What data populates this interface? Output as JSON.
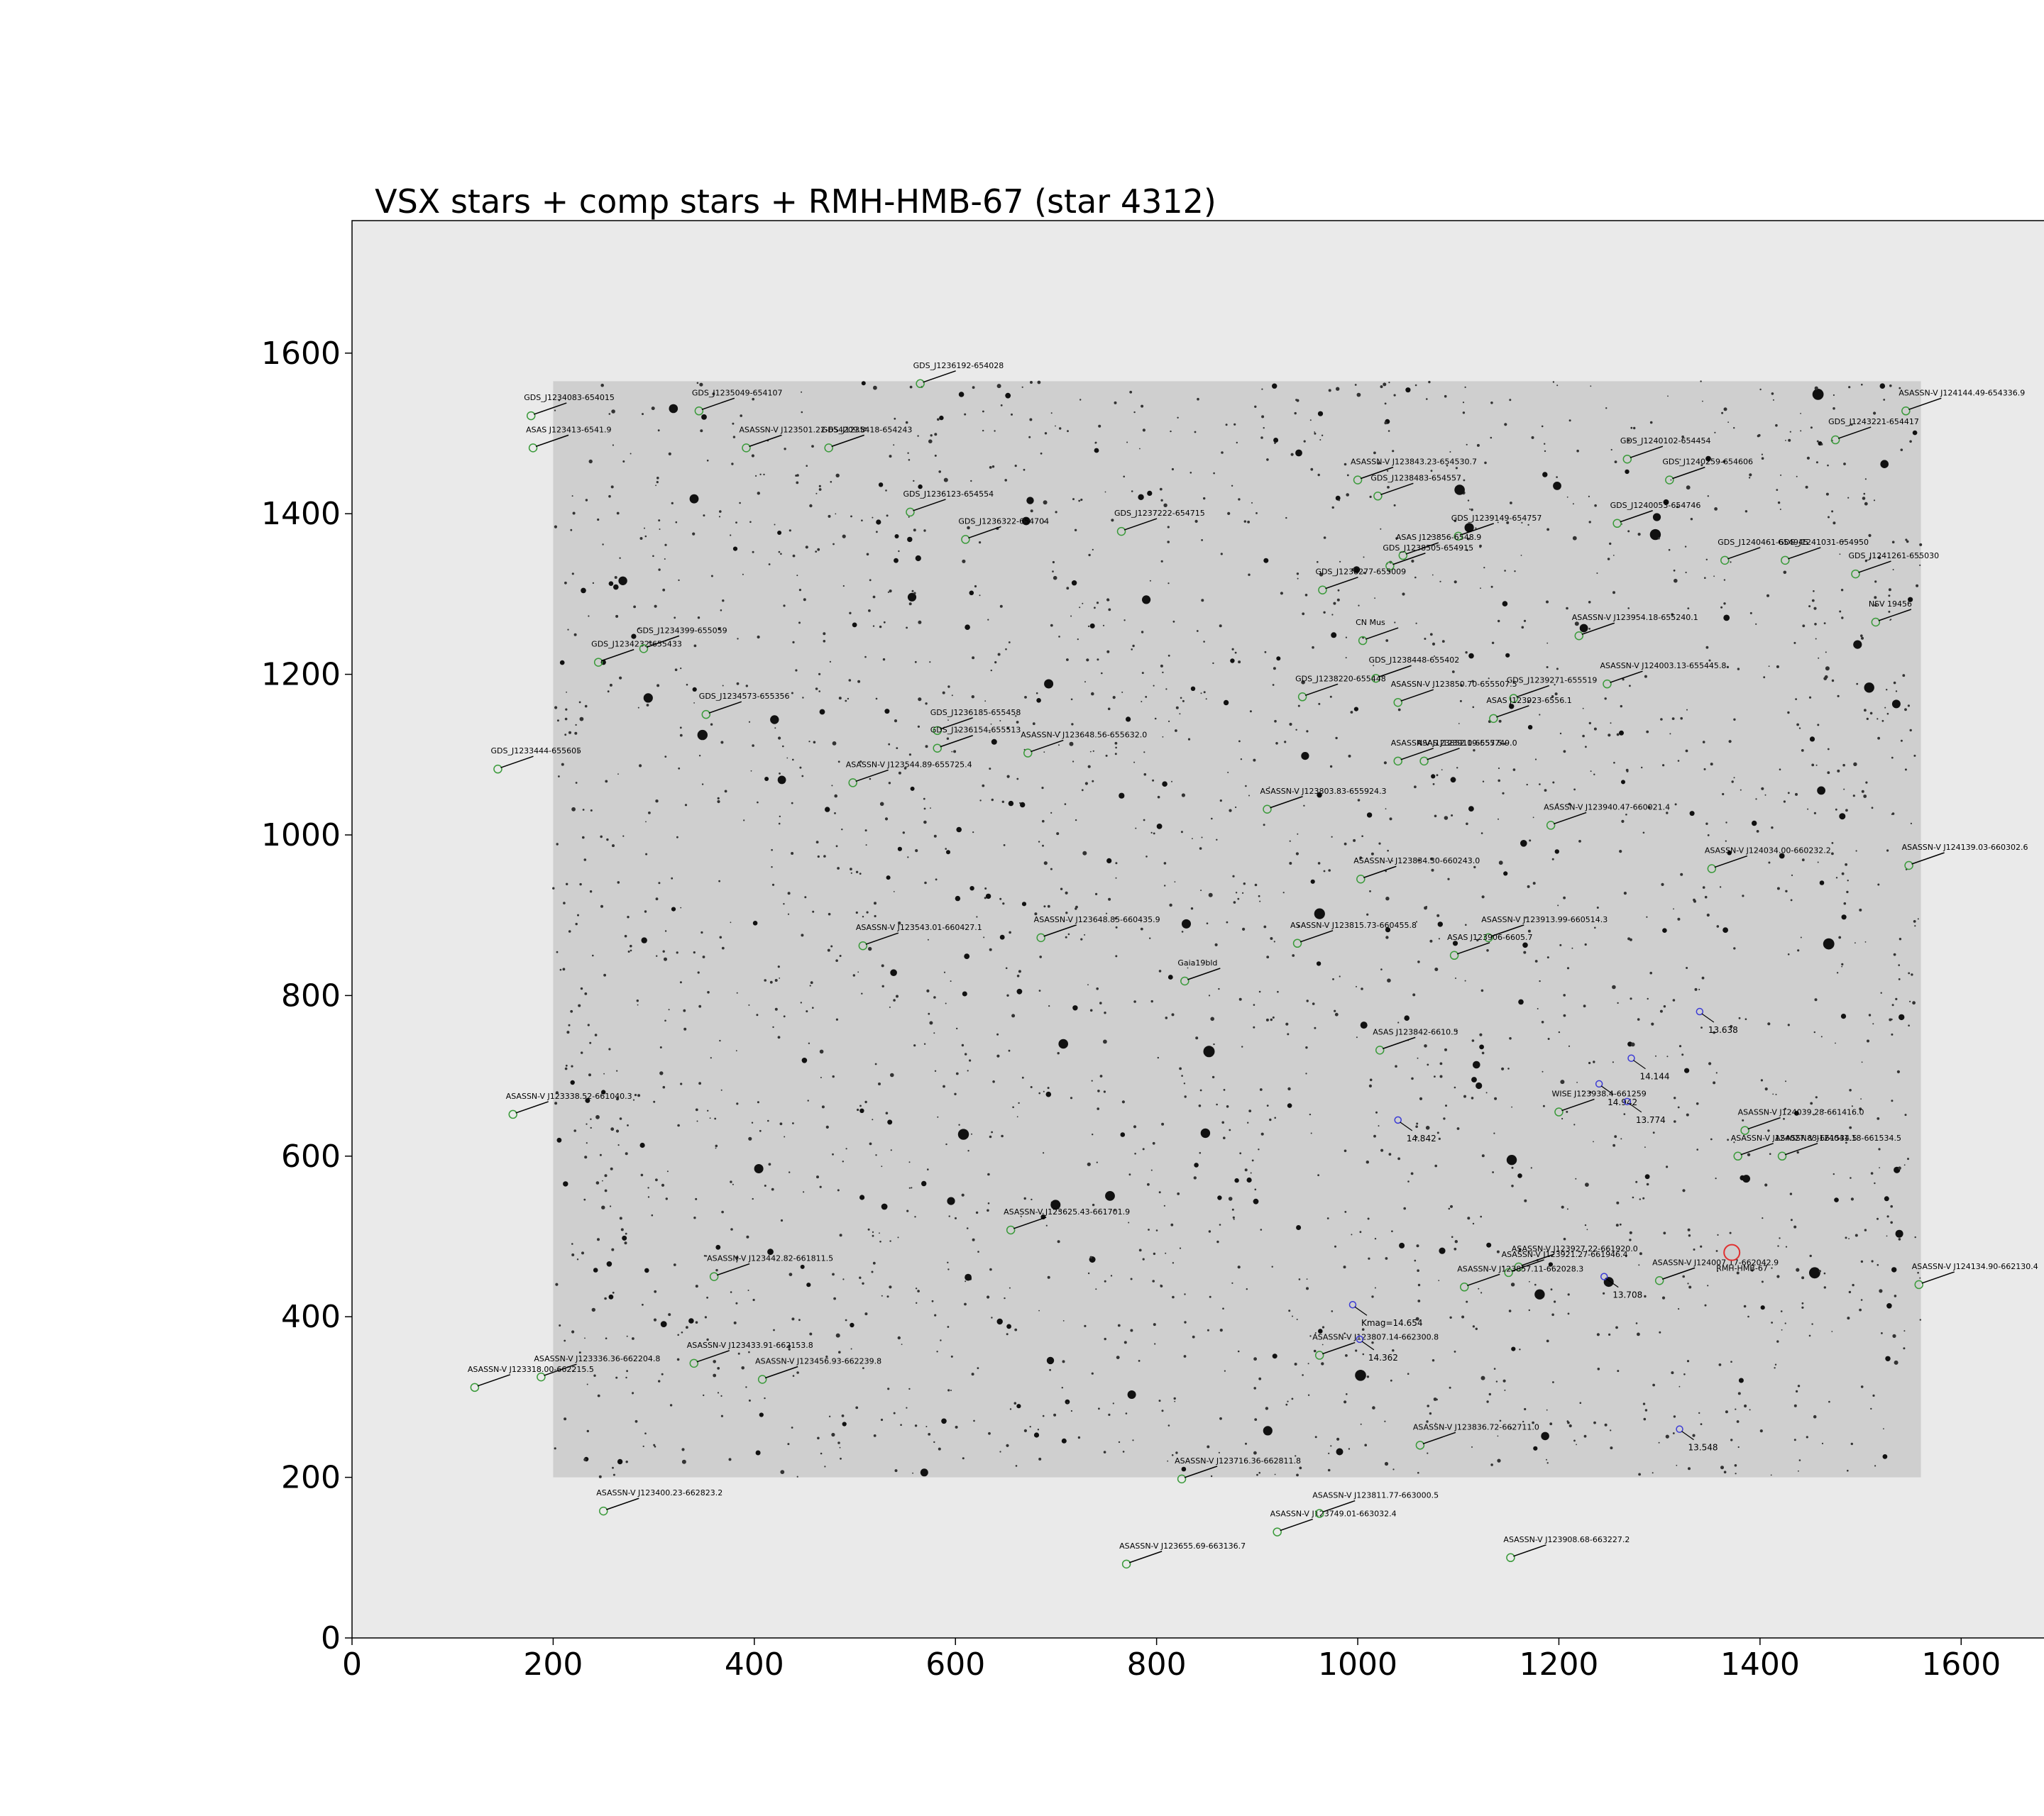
{
  "chart_data": {
    "type": "scatter",
    "title": "VSX stars + comp stars + RMH-HMB-67 (star 4312)",
    "xlabel": "",
    "ylabel": "",
    "xlim": [
      0,
      1760
    ],
    "ylim": [
      0,
      1765
    ],
    "xticks": [
      0,
      200,
      400,
      600,
      800,
      1000,
      1200,
      1400,
      1600
    ],
    "yticks": [
      0,
      200,
      400,
      600,
      800,
      1000,
      1200,
      1400,
      1600
    ],
    "grid": false,
    "image_extent": {
      "x": [
        200,
        1560
      ],
      "y": [
        200,
        1565
      ]
    },
    "colors": {
      "axes_background": "#eaeaea",
      "image_background": "#cfcfcf",
      "vsx_marker": "#3a9a3a",
      "comp_marker": "#3b3bd6",
      "target_marker": "#e03030",
      "leader_line": "#000000"
    },
    "vsx_stars": [
      {
        "x": 565,
        "y": 1562,
        "label": "GDS_J1236192-654028"
      },
      {
        "x": 178,
        "y": 1522,
        "label": "GDS_J1234083-654015"
      },
      {
        "x": 345,
        "y": 1528,
        "label": "GDS_J1235049-654107"
      },
      {
        "x": 1545,
        "y": 1528,
        "label": "ASASSN-V J124144.49-654336.9"
      },
      {
        "x": 180,
        "y": 1482,
        "label": "ASAS J123413-6541.9"
      },
      {
        "x": 392,
        "y": 1482,
        "label": "ASASSN-V J123501.22-654209.8"
      },
      {
        "x": 474,
        "y": 1482,
        "label": "GDS_J1235418-654243"
      },
      {
        "x": 1475,
        "y": 1492,
        "label": "GDS_J1243221-654417"
      },
      {
        "x": 1268,
        "y": 1468,
        "label": "GDS_J1240102-654454"
      },
      {
        "x": 1310,
        "y": 1442,
        "label": "GDS_J1240259-654606"
      },
      {
        "x": 1000,
        "y": 1442,
        "label": "ASASSN-V J123843.23-654530.7"
      },
      {
        "x": 1020,
        "y": 1422,
        "label": "GDS_J1238483-654557"
      },
      {
        "x": 555,
        "y": 1402,
        "label": "GDS_J1236123-654554"
      },
      {
        "x": 1258,
        "y": 1388,
        "label": "GDS_J1240053-654746"
      },
      {
        "x": 610,
        "y": 1368,
        "label": "GDS_J1236322-654704"
      },
      {
        "x": 765,
        "y": 1378,
        "label": "GDS_J1237222-654715"
      },
      {
        "x": 1100,
        "y": 1372,
        "label": "GDS_J1239149-654757"
      },
      {
        "x": 1045,
        "y": 1348,
        "label": "ASAS J123856-6548.9"
      },
      {
        "x": 1032,
        "y": 1335,
        "label": "GDS_J1238505-654915"
      },
      {
        "x": 1365,
        "y": 1342,
        "label": "GDS_J1240461-654945"
      },
      {
        "x": 1425,
        "y": 1342,
        "label": "GDS_J1241031-654950"
      },
      {
        "x": 1495,
        "y": 1325,
        "label": "GDS_J1241261-655030"
      },
      {
        "x": 965,
        "y": 1305,
        "label": "GDS_J1238277-655009"
      },
      {
        "x": 1515,
        "y": 1265,
        "label": "NSV 19456"
      },
      {
        "x": 1005,
        "y": 1242,
        "label": "CN Mus"
      },
      {
        "x": 1220,
        "y": 1248,
        "label": "ASASSN-V J123954.18-655240.1"
      },
      {
        "x": 245,
        "y": 1215,
        "label": "GDS_J1234232-655433"
      },
      {
        "x": 290,
        "y": 1232,
        "label": "GDS_J1234399-655059"
      },
      {
        "x": 1018,
        "y": 1195,
        "label": "GDS_J1238448-655402"
      },
      {
        "x": 1248,
        "y": 1188,
        "label": "ASASSN-V J124003.13-655445.8"
      },
      {
        "x": 945,
        "y": 1172,
        "label": "GDS_J1238220-655448"
      },
      {
        "x": 1040,
        "y": 1165,
        "label": "ASASSN-V J123850.70-655507.5"
      },
      {
        "x": 1155,
        "y": 1170,
        "label": "GDS_J1239271-655519"
      },
      {
        "x": 352,
        "y": 1150,
        "label": "GDS_J1234573-655356"
      },
      {
        "x": 1135,
        "y": 1145,
        "label": "ASAS J123923-6556.1"
      },
      {
        "x": 582,
        "y": 1130,
        "label": "GDS_J1236185-655458"
      },
      {
        "x": 582,
        "y": 1108,
        "label": "GDS_J1236154-655513"
      },
      {
        "x": 672,
        "y": 1102,
        "label": "ASASSN-V J123648.56-655632.0"
      },
      {
        "x": 1040,
        "y": 1092,
        "label": "ASASSN-V J123852.19-655749.0"
      },
      {
        "x": 1066,
        "y": 1092,
        "label": "ASAS J123910-6557.5"
      },
      {
        "x": 145,
        "y": 1082,
        "label": "GDS_J1233444-655605"
      },
      {
        "x": 498,
        "y": 1065,
        "label": "ASASSN-V J123544.89-655725.4"
      },
      {
        "x": 910,
        "y": 1032,
        "label": "ASASSN-V J123803.83-655924.3"
      },
      {
        "x": 1192,
        "y": 1012,
        "label": "ASASSN-V J123940.47-660021.4"
      },
      {
        "x": 1003,
        "y": 945,
        "label": "ASASSN-V J123834.30-660243.0"
      },
      {
        "x": 1352,
        "y": 958,
        "label": "ASASSN-V J124034.00-660232.2"
      },
      {
        "x": 1548,
        "y": 962,
        "label": "ASASSN-V J124139.03-660302.6"
      },
      {
        "x": 685,
        "y": 872,
        "label": "ASASSN-V J123648.85-660435.9"
      },
      {
        "x": 508,
        "y": 862,
        "label": "ASASSN-V J123543.01-660427.1"
      },
      {
        "x": 940,
        "y": 865,
        "label": "ASASSN-V J123815.73-660455.8"
      },
      {
        "x": 1130,
        "y": 872,
        "label": "ASASSN-V J123913.99-660514.3"
      },
      {
        "x": 1096,
        "y": 850,
        "label": "ASAS J123906-6605.7"
      },
      {
        "x": 828,
        "y": 818,
        "label": "Gaia19bld"
      },
      {
        "x": 1022,
        "y": 732,
        "label": "ASAS J123842-6610.5"
      },
      {
        "x": 1200,
        "y": 655,
        "label": "WISE J123938.4-661259"
      },
      {
        "x": 160,
        "y": 652,
        "label": "ASASSN-V J123338.52-661040.3"
      },
      {
        "x": 1385,
        "y": 632,
        "label": "ASASSN-V J124039.28-661416.0"
      },
      {
        "x": 1378,
        "y": 600,
        "label": "ASASSN-V J124027.83-661534.5"
      },
      {
        "x": 1422,
        "y": 600,
        "label": "ASASSN-V J124041.18-661534.5"
      },
      {
        "x": 655,
        "y": 508,
        "label": "ASASSN-V J123625.43-661701.9"
      },
      {
        "x": 1160,
        "y": 462,
        "label": "ASASSN-V J123927.22-661920.0"
      },
      {
        "x": 1150,
        "y": 455,
        "label": "ASASSN-V J123921.27-661946.4"
      },
      {
        "x": 1300,
        "y": 445,
        "label": "ASASSN-V J124007.17-662042.9"
      },
      {
        "x": 1106,
        "y": 437,
        "label": "ASASSN-V J123857.11-662028.3"
      },
      {
        "x": 1558,
        "y": 440,
        "label": "ASASSN-V J124134.90-662130.4"
      },
      {
        "x": 360,
        "y": 450,
        "label": "ASASSN-V J123442.82-661811.5"
      },
      {
        "x": 962,
        "y": 352,
        "label": "ASASSN-V J123807.14-662300.8"
      },
      {
        "x": 340,
        "y": 342,
        "label": "ASASSN-V J123433.91-662153.8"
      },
      {
        "x": 188,
        "y": 325,
        "label": "ASASSN-V J123336.36-662204.8"
      },
      {
        "x": 408,
        "y": 322,
        "label": "ASASSN-V J123456.93-662239.8"
      },
      {
        "x": 122,
        "y": 312,
        "label": "ASASSN-V J123318.00-662215.5"
      },
      {
        "x": 1062,
        "y": 240,
        "label": "ASASSN-V J123836.72-662711.0"
      },
      {
        "x": 825,
        "y": 198,
        "label": "ASASSN-V J123716.36-662811.8"
      },
      {
        "x": 250,
        "y": 158,
        "label": "ASASSN-V J123400.23-662823.2"
      },
      {
        "x": 920,
        "y": 132,
        "label": "ASASSN-V J123749.01-663032.4"
      },
      {
        "x": 962,
        "y": 155,
        "label": "ASASSN-V J123811.77-663000.5"
      },
      {
        "x": 1152,
        "y": 100,
        "label": "ASASSN-V J123908.68-663227.2"
      },
      {
        "x": 770,
        "y": 92,
        "label": "ASASSN-V J123655.69-663136.7"
      }
    ],
    "comp_stars": [
      {
        "x": 1340,
        "y": 780,
        "label": "13.638"
      },
      {
        "x": 1272,
        "y": 722,
        "label": "14.144"
      },
      {
        "x": 1240,
        "y": 690,
        "label": "14.942"
      },
      {
        "x": 1268,
        "y": 668,
        "label": "13.774"
      },
      {
        "x": 1040,
        "y": 645,
        "label": "14.842"
      },
      {
        "x": 1245,
        "y": 450,
        "label": "13.708"
      },
      {
        "x": 995,
        "y": 415,
        "label": "Kmag=14.654"
      },
      {
        "x": 1002,
        "y": 372,
        "label": "14.362"
      },
      {
        "x": 1320,
        "y": 260,
        "label": "13.548"
      }
    ],
    "target": {
      "x": 1372,
      "y": 480,
      "label": "RMH-HMB-67"
    }
  }
}
